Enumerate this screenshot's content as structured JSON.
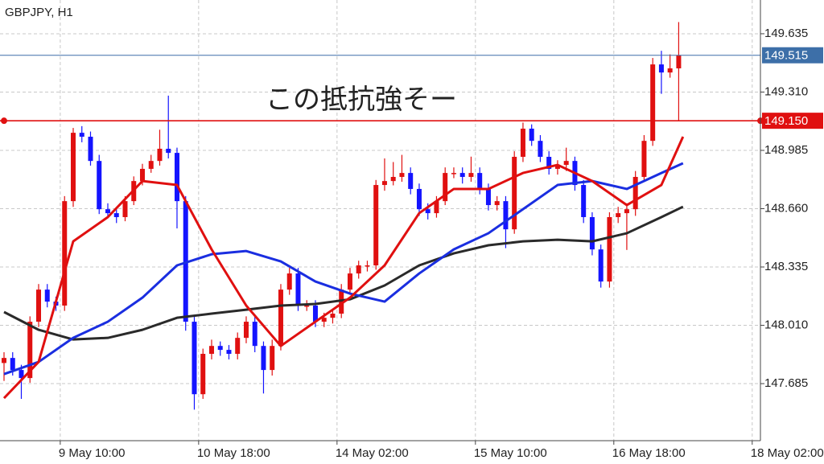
{
  "chart_data": {
    "type": "candlestick",
    "title": "GBPJPY, H1",
    "annotation": "この抵抗強そー",
    "up_color": "#e01010",
    "down_color": "#1414ff",
    "grid": true,
    "xlim": [
      -0.93,
      174.9
    ],
    "ylim": [
      147.367,
      149.823
    ],
    "xticks": [
      {
        "value": 13,
        "label": "9 May 10:00"
      },
      {
        "value": 45,
        "label": "10 May 18:00"
      },
      {
        "value": 77,
        "label": "14 May 02:00"
      },
      {
        "value": 109,
        "label": "15 May 10:00"
      },
      {
        "value": 141,
        "label": "16 May 18:00"
      },
      {
        "value": 173,
        "label": "18 May 02:00"
      }
    ],
    "yticks": [
      149.635,
      {
        "value": 149.31,
        "label": "149.310"
      },
      148.985,
      {
        "value": 148.66,
        "label": "148.660"
      },
      148.335,
      {
        "value": 148.01,
        "label": "148.010"
      },
      147.685
    ],
    "hlines": [
      {
        "value": 149.515,
        "color": "#3d6fa8"
      },
      {
        "value": 149.15,
        "label": "149.150",
        "color": "#e01010"
      }
    ],
    "x": [
      0,
      2,
      4,
      6,
      8,
      10,
      12,
      14,
      16,
      18,
      20,
      22,
      24,
      26,
      28,
      30,
      32,
      34,
      36,
      38,
      40,
      42,
      44,
      46,
      48,
      50,
      52,
      54,
      56,
      58,
      60,
      62,
      64,
      66,
      68,
      70,
      72,
      74,
      76,
      78,
      80,
      82,
      84,
      86,
      88,
      90,
      92,
      94,
      96,
      98,
      100,
      102,
      104,
      106,
      108,
      110,
      112,
      114,
      116,
      118,
      120,
      122,
      124,
      126,
      128,
      130,
      132,
      134,
      136,
      138,
      140,
      142,
      144,
      146,
      148,
      150,
      152,
      154,
      156
    ],
    "open": [
      147.8,
      147.828,
      147.761,
      147.716,
      148.03,
      148.209,
      148.142,
      148.12,
      148.702,
      149.083,
      149.061,
      148.926,
      148.657,
      148.635,
      148.613,
      148.702,
      148.814,
      148.882,
      148.926,
      148.994,
      148.971,
      148.702,
      148.03,
      147.626,
      147.851,
      147.895,
      147.873,
      147.851,
      147.94,
      148.03,
      147.895,
      147.761,
      147.895,
      148.209,
      148.299,
      148.12,
      148.12,
      148.03,
      148.052,
      148.075,
      148.209,
      148.299,
      148.344,
      148.344,
      148.792,
      148.814,
      148.837,
      148.859,
      148.77,
      148.657,
      148.635,
      148.702,
      148.859,
      148.859,
      148.837,
      148.859,
      148.77,
      148.68,
      148.702,
      148.545,
      148.949,
      149.106,
      149.038,
      148.949,
      148.882,
      148.904,
      148.926,
      148.792,
      148.613,
      148.433,
      148.254,
      148.613,
      148.635,
      148.657,
      148.837,
      149.038,
      149.464,
      149.419,
      149.442
    ],
    "high": [
      147.86,
      147.86,
      147.79,
      148.06,
      148.24,
      148.24,
      148.17,
      148.73,
      149.11,
      149.12,
      149.09,
      148.96,
      148.69,
      148.66,
      148.73,
      148.84,
      148.91,
      148.96,
      149.1,
      149.29,
      149.0,
      148.73,
      148.06,
      147.88,
      147.93,
      147.92,
      147.9,
      147.97,
      148.06,
      148.06,
      147.92,
      147.93,
      148.24,
      148.33,
      148.33,
      148.15,
      148.15,
      148.08,
      148.1,
      148.24,
      148.33,
      148.37,
      148.37,
      148.82,
      148.94,
      148.92,
      148.96,
      148.89,
      148.8,
      148.69,
      148.73,
      148.89,
      148.89,
      148.89,
      148.95,
      148.89,
      148.8,
      148.73,
      148.73,
      148.98,
      149.14,
      149.13,
      149.07,
      148.98,
      148.93,
      149.0,
      148.95,
      148.82,
      148.64,
      148.46,
      148.64,
      148.67,
      148.69,
      148.87,
      149.07,
      149.5,
      149.54,
      149.52,
      149.7
    ],
    "low": [
      147.7,
      147.73,
      147.6,
      147.69,
      148.0,
      148.11,
      148.09,
      148.09,
      148.67,
      149.03,
      148.9,
      148.63,
      148.61,
      148.58,
      148.59,
      148.68,
      148.79,
      148.86,
      148.9,
      148.94,
      148.55,
      147.98,
      147.54,
      147.6,
      147.82,
      147.84,
      147.82,
      147.82,
      147.91,
      147.86,
      147.63,
      147.73,
      147.87,
      148.18,
      148.09,
      148.09,
      148.0,
      148.0,
      148.02,
      148.05,
      148.18,
      148.27,
      148.31,
      148.32,
      148.76,
      148.79,
      148.81,
      148.74,
      148.62,
      148.6,
      148.61,
      148.68,
      148.83,
      148.8,
      148.81,
      148.74,
      148.65,
      148.65,
      148.44,
      148.52,
      148.92,
      149.01,
      148.92,
      148.85,
      148.85,
      148.87,
      148.76,
      148.58,
      148.4,
      148.22,
      148.22,
      148.58,
      148.43,
      148.62,
      148.81,
      149.01,
      149.3,
      149.39,
      149.15
    ],
    "close": [
      147.828,
      147.761,
      147.716,
      148.03,
      148.209,
      148.142,
      148.12,
      148.702,
      149.083,
      149.061,
      148.926,
      148.657,
      148.635,
      148.613,
      148.702,
      148.814,
      148.882,
      148.926,
      148.994,
      148.971,
      148.702,
      148.03,
      147.626,
      147.851,
      147.895,
      147.873,
      147.851,
      147.94,
      148.03,
      147.895,
      147.761,
      147.895,
      148.209,
      148.299,
      148.12,
      148.12,
      148.03,
      148.052,
      148.075,
      148.209,
      148.299,
      148.344,
      148.344,
      148.792,
      148.814,
      148.837,
      148.859,
      148.77,
      148.657,
      148.635,
      148.702,
      148.859,
      148.859,
      148.837,
      148.859,
      148.77,
      148.68,
      148.702,
      148.545,
      148.949,
      149.106,
      149.038,
      148.949,
      148.882,
      148.904,
      148.926,
      148.792,
      148.613,
      148.433,
      148.254,
      148.613,
      148.635,
      148.657,
      148.837,
      149.038,
      149.464,
      149.419,
      149.442,
      149.515
    ],
    "lines": [
      {
        "color": "#2a2a2a",
        "x": [
          0,
          8,
          16,
          24,
          32,
          40,
          48,
          56,
          64,
          72,
          80,
          88,
          96,
          104,
          112,
          120,
          128,
          136,
          144,
          152,
          157
        ],
        "values": [
          148.084,
          147.985,
          147.931,
          147.94,
          147.985,
          148.052,
          148.075,
          148.097,
          148.12,
          148.129,
          148.155,
          148.232,
          148.344,
          148.411,
          148.456,
          148.478,
          148.487,
          148.478,
          148.523,
          148.613,
          148.671
        ]
      },
      {
        "color": "#1a2ee0",
        "x": [
          0,
          8,
          16,
          24,
          32,
          40,
          48,
          56,
          64,
          72,
          80,
          88,
          96,
          104,
          112,
          120,
          128,
          136,
          144,
          152,
          157
        ],
        "values": [
          147.738,
          147.806,
          147.94,
          148.03,
          148.164,
          148.344,
          148.406,
          148.424,
          148.366,
          148.254,
          148.187,
          148.142,
          148.299,
          148.433,
          148.523,
          148.657,
          148.792,
          148.814,
          148.77,
          148.859,
          148.913
        ]
      },
      {
        "color": "#e01010",
        "x": [
          0,
          8,
          16,
          24,
          32,
          40,
          48,
          56,
          64,
          72,
          80,
          88,
          96,
          104,
          112,
          120,
          128,
          136,
          144,
          152,
          157
        ],
        "values": [
          147.604,
          147.806,
          148.478,
          148.613,
          148.814,
          148.792,
          148.433,
          148.12,
          147.895,
          148.03,
          148.164,
          148.344,
          148.635,
          148.77,
          148.77,
          148.859,
          148.904,
          148.814,
          148.68,
          148.792,
          149.061
        ]
      }
    ]
  }
}
